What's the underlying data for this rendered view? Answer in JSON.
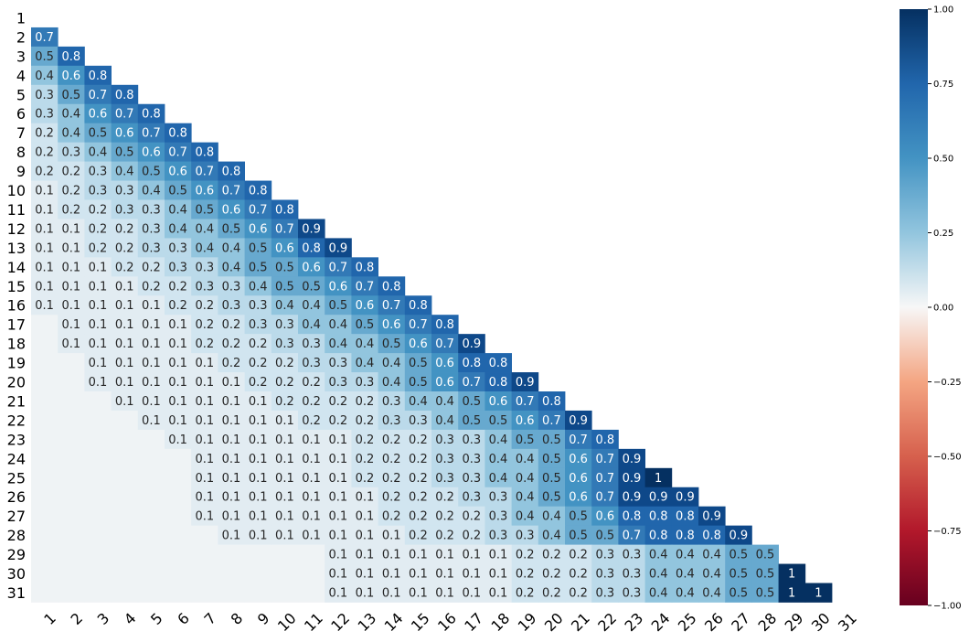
{
  "chart_data": {
    "type": "heatmap",
    "title": "",
    "xlabel": "",
    "ylabel": "",
    "labels": [
      "1",
      "2",
      "3",
      "4",
      "5",
      "6",
      "7",
      "8",
      "9",
      "10",
      "11",
      "12",
      "13",
      "14",
      "15",
      "16",
      "17",
      "18",
      "19",
      "20",
      "21",
      "22",
      "23",
      "24",
      "25",
      "26",
      "27",
      "28",
      "29",
      "30",
      "31"
    ],
    "triangle": "lower",
    "vmin": -1.0,
    "vmax": 1.0,
    "colormap": "RdBu",
    "colorbar_ticks": [
      "1.00",
      "0.75",
      "0.50",
      "0.25",
      "0.00",
      "−0.25",
      "−0.50",
      "−0.75",
      "−1.00"
    ],
    "rows": [
      [],
      [
        "0.7"
      ],
      [
        "0.5",
        "0.8"
      ],
      [
        "0.4",
        "0.6",
        "0.8"
      ],
      [
        "0.3",
        "0.5",
        "0.7",
        "0.8"
      ],
      [
        "0.3",
        "0.4",
        "0.6",
        "0.7",
        "0.8"
      ],
      [
        "0.2",
        "0.4",
        "0.5",
        "0.6",
        "0.7",
        "0.8"
      ],
      [
        "0.2",
        "0.3",
        "0.4",
        "0.5",
        "0.6",
        "0.7",
        "0.8"
      ],
      [
        "0.2",
        "0.2",
        "0.3",
        "0.4",
        "0.5",
        "0.6",
        "0.7",
        "0.8"
      ],
      [
        "0.1",
        "0.2",
        "0.3",
        "0.3",
        "0.4",
        "0.5",
        "0.6",
        "0.7",
        "0.8"
      ],
      [
        "0.1",
        "0.2",
        "0.2",
        "0.3",
        "0.3",
        "0.4",
        "0.5",
        "0.6",
        "0.7",
        "0.8"
      ],
      [
        "0.1",
        "0.1",
        "0.2",
        "0.2",
        "0.3",
        "0.4",
        "0.4",
        "0.5",
        "0.6",
        "0.7",
        "0.9"
      ],
      [
        "0.1",
        "0.1",
        "0.2",
        "0.2",
        "0.3",
        "0.3",
        "0.4",
        "0.4",
        "0.5",
        "0.6",
        "0.8",
        "0.9"
      ],
      [
        "0.1",
        "0.1",
        "0.1",
        "0.2",
        "0.2",
        "0.3",
        "0.3",
        "0.4",
        "0.5",
        "0.5",
        "0.6",
        "0.7",
        "0.8"
      ],
      [
        "0.1",
        "0.1",
        "0.1",
        "0.1",
        "0.2",
        "0.2",
        "0.3",
        "0.3",
        "0.4",
        "0.5",
        "0.5",
        "0.6",
        "0.7",
        "0.8"
      ],
      [
        "0.1",
        "0.1",
        "0.1",
        "0.1",
        "0.1",
        "0.2",
        "0.2",
        "0.3",
        "0.3",
        "0.4",
        "0.4",
        "0.5",
        "0.6",
        "0.7",
        "0.8"
      ],
      [
        "",
        "0.1",
        "0.1",
        "0.1",
        "0.1",
        "0.1",
        "0.2",
        "0.2",
        "0.3",
        "0.3",
        "0.4",
        "0.4",
        "0.5",
        "0.6",
        "0.7",
        "0.8"
      ],
      [
        "",
        "0.1",
        "0.1",
        "0.1",
        "0.1",
        "0.1",
        "0.2",
        "0.2",
        "0.2",
        "0.3",
        "0.3",
        "0.4",
        "0.4",
        "0.5",
        "0.6",
        "0.7",
        "0.9"
      ],
      [
        "",
        "",
        "0.1",
        "0.1",
        "0.1",
        "0.1",
        "0.1",
        "0.2",
        "0.2",
        "0.2",
        "0.3",
        "0.3",
        "0.4",
        "0.4",
        "0.5",
        "0.6",
        "0.8",
        "0.8"
      ],
      [
        "",
        "",
        "0.1",
        "0.1",
        "0.1",
        "0.1",
        "0.1",
        "0.1",
        "0.2",
        "0.2",
        "0.2",
        "0.3",
        "0.3",
        "0.4",
        "0.5",
        "0.6",
        "0.7",
        "0.8",
        "0.9"
      ],
      [
        "",
        "",
        "",
        "0.1",
        "0.1",
        "0.1",
        "0.1",
        "0.1",
        "0.1",
        "0.2",
        "0.2",
        "0.2",
        "0.2",
        "0.3",
        "0.4",
        "0.4",
        "0.5",
        "0.6",
        "0.7",
        "0.8"
      ],
      [
        "",
        "",
        "",
        "",
        "0.1",
        "0.1",
        "0.1",
        "0.1",
        "0.1",
        "0.1",
        "0.2",
        "0.2",
        "0.2",
        "0.3",
        "0.3",
        "0.4",
        "0.5",
        "0.5",
        "0.6",
        "0.7",
        "0.9"
      ],
      [
        "",
        "",
        "",
        "",
        "",
        "0.1",
        "0.1",
        "0.1",
        "0.1",
        "0.1",
        "0.1",
        "0.1",
        "0.2",
        "0.2",
        "0.2",
        "0.3",
        "0.3",
        "0.4",
        "0.5",
        "0.5",
        "0.7",
        "0.8"
      ],
      [
        "",
        "",
        "",
        "",
        "",
        "",
        "0.1",
        "0.1",
        "0.1",
        "0.1",
        "0.1",
        "0.1",
        "0.2",
        "0.2",
        "0.2",
        "0.3",
        "0.3",
        "0.4",
        "0.4",
        "0.5",
        "0.6",
        "0.7",
        "0.9"
      ],
      [
        "",
        "",
        "",
        "",
        "",
        "",
        "0.1",
        "0.1",
        "0.1",
        "0.1",
        "0.1",
        "0.1",
        "0.2",
        "0.2",
        "0.2",
        "0.3",
        "0.3",
        "0.4",
        "0.4",
        "0.5",
        "0.6",
        "0.7",
        "0.9",
        "1"
      ],
      [
        "",
        "",
        "",
        "",
        "",
        "",
        "0.1",
        "0.1",
        "0.1",
        "0.1",
        "0.1",
        "0.1",
        "0.1",
        "0.2",
        "0.2",
        "0.2",
        "0.3",
        "0.3",
        "0.4",
        "0.5",
        "0.6",
        "0.7",
        "0.9",
        "0.9",
        "0.9"
      ],
      [
        "",
        "",
        "",
        "",
        "",
        "",
        "0.1",
        "0.1",
        "0.1",
        "0.1",
        "0.1",
        "0.1",
        "0.1",
        "0.2",
        "0.2",
        "0.2",
        "0.2",
        "0.3",
        "0.4",
        "0.4",
        "0.5",
        "0.6",
        "0.8",
        "0.8",
        "0.8",
        "0.9"
      ],
      [
        "",
        "",
        "",
        "",
        "",
        "",
        "",
        "0.1",
        "0.1",
        "0.1",
        "0.1",
        "0.1",
        "0.1",
        "0.1",
        "0.2",
        "0.2",
        "0.2",
        "0.3",
        "0.3",
        "0.4",
        "0.5",
        "0.5",
        "0.7",
        "0.8",
        "0.8",
        "0.8",
        "0.9"
      ],
      [
        "",
        "",
        "",
        "",
        "",
        "",
        "",
        "",
        "",
        "",
        "",
        "0.1",
        "0.1",
        "0.1",
        "0.1",
        "0.1",
        "0.1",
        "0.1",
        "0.2",
        "0.2",
        "0.2",
        "0.3",
        "0.3",
        "0.4",
        "0.4",
        "0.4",
        "0.5",
        "0.5"
      ],
      [
        "",
        "",
        "",
        "",
        "",
        "",
        "",
        "",
        "",
        "",
        "",
        "0.1",
        "0.1",
        "0.1",
        "0.1",
        "0.1",
        "0.1",
        "0.1",
        "0.2",
        "0.2",
        "0.2",
        "0.3",
        "0.3",
        "0.4",
        "0.4",
        "0.4",
        "0.5",
        "0.5",
        "1"
      ],
      [
        "",
        "",
        "",
        "",
        "",
        "",
        "",
        "",
        "",
        "",
        "",
        "0.1",
        "0.1",
        "0.1",
        "0.1",
        "0.1",
        "0.1",
        "0.1",
        "0.2",
        "0.2",
        "0.2",
        "0.3",
        "0.3",
        "0.4",
        "0.4",
        "0.4",
        "0.5",
        "0.5",
        "1",
        "1"
      ]
    ]
  }
}
